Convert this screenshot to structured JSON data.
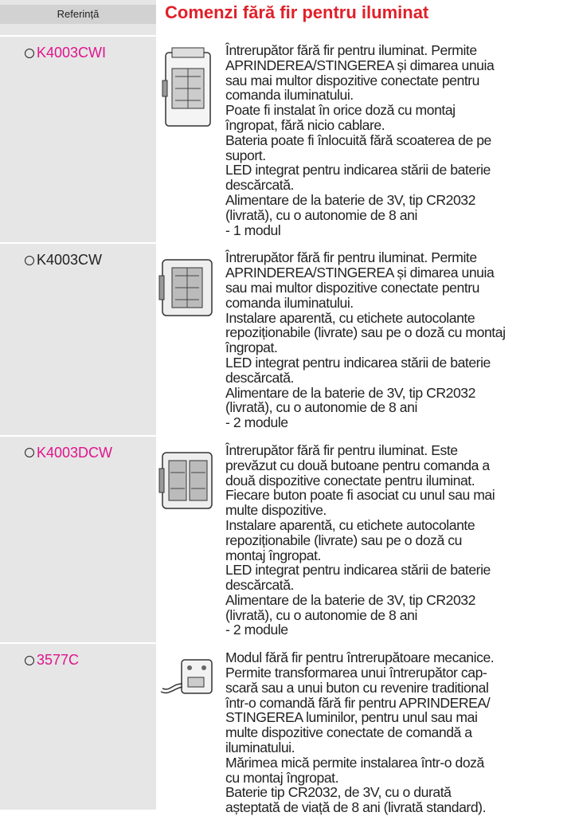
{
  "header": {
    "reference_label": "Referință",
    "title": "Comenzi fără fir pentru iluminat"
  },
  "products": [
    {
      "reference": "K4003CWI",
      "color": "#e0148c",
      "lines": [
        "Întrerupător fără fir pentru iluminat. Permite",
        "APRINDEREA/STINGEREA și dimarea unuia",
        "sau mai multor dispozitive conectate pentru",
        "comanda iluminatului.",
        "Poate fi instalat în orice doză cu montaj",
        "îngropat, fără nicio cablare.",
        "Bateria poate fi înlocuită fără scoaterea de pe",
        "suport.",
        "LED integrat pentru indicarea stării de baterie",
        "descărcată.",
        "Alimentare de la baterie de 3V, tip CR2032",
        "(livrată), cu o autonomie de 8 ani",
        "- 1 modul"
      ]
    },
    {
      "reference": "K4003CW",
      "color": "#222222",
      "lines": [
        "Întrerupător fără fir pentru iluminat. Permite",
        "APRINDEREA/STINGEREA și dimarea unuia",
        "sau mai multor dispozitive conectate pentru",
        "comanda iluminatului.",
        "Instalare aparentă, cu etichete autocolante",
        "repoziționabile (livrate) sau pe o doză cu montaj",
        "îngropat.",
        "LED integrat pentru indicarea stării de baterie",
        "descărcată.",
        "Alimentare de la baterie de 3V, tip CR2032",
        "(livrată), cu o autonomie de 8 ani",
        "- 2 module"
      ]
    },
    {
      "reference": "K4003DCW",
      "color": "#e0148c",
      "lines": [
        "Întrerupător fără fir pentru iluminat. Este",
        "prevăzut cu două butoane pentru comanda a",
        "două dispozitive conectate pentru iluminat.",
        "Fiecare buton poate fi asociat cu unul sau mai",
        "multe dispozitive.",
        "Instalare aparentă, cu etichete autocolante",
        "repoziționabile (livrate) sau pe o doză cu",
        "montaj îngropat.",
        "LED integrat pentru indicarea stării de baterie",
        "descărcată.",
        "Alimentare de la baterie de 3V, tip CR2032",
        "(livrată), cu o autonomie de 8 ani",
        "- 2 module"
      ]
    },
    {
      "reference": "3577C",
      "color": "#e0148c",
      "lines": [
        "Modul fără fir pentru întrerupătoare mecanice.",
        "Permite transformarea unui întrerupător cap-",
        "scară sau a unui buton cu revenire traditional",
        "într-o comandă fără fir pentru APRINDEREA/",
        "STINGEREA luminilor, pentru unul sau mai",
        "multe dispozitive conectate de comandă a",
        "iluminatului.",
        "Mărimea mică permite instalarea într-o doză",
        "cu montaj îngropat.",
        "Baterie tip CR2032, de 3V, cu o durată",
        "așteptată de viață de 8 ani (livrată standard)."
      ]
    }
  ]
}
